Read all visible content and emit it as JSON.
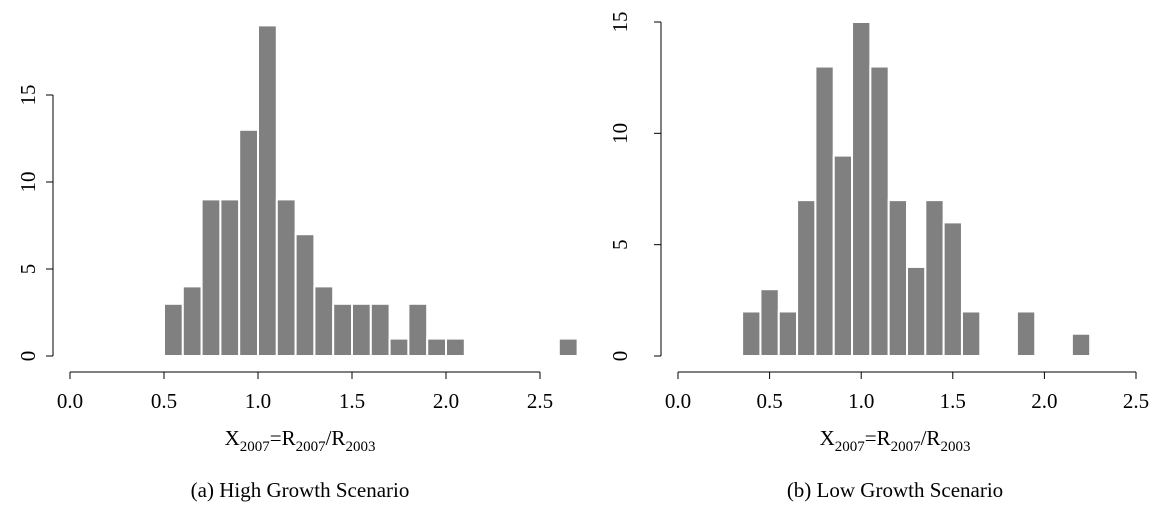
{
  "chart_data": [
    {
      "type": "histogram",
      "caption": "(a) High Growth Scenario",
      "x_label": [
        "X",
        "2007",
        "=R",
        "2007",
        "/R",
        "2003"
      ],
      "bins": [
        0.5,
        0.6,
        0.7,
        0.8,
        0.9,
        1.0,
        1.1,
        1.2,
        1.3,
        1.4,
        1.5,
        1.6,
        1.7,
        1.8,
        1.9,
        2.0,
        2.1,
        2.2,
        2.3,
        2.4,
        2.5,
        2.6,
        2.7
      ],
      "values": [
        3,
        4,
        9,
        9,
        13,
        19,
        9,
        7,
        4,
        3,
        3,
        3,
        1,
        3,
        1,
        1,
        0,
        0,
        0,
        0,
        0,
        1
      ],
      "color": "#808080",
      "xlim": [
        0,
        2.7
      ],
      "xticks": [
        {
          "value": 0,
          "label": "0.0"
        },
        0.5,
        {
          "value": 1,
          "label": "1.0"
        },
        1.5,
        {
          "value": 2,
          "label": "2.0"
        },
        2.5
      ],
      "ylim": [
        0,
        19
      ],
      "yticks": [
        0,
        5,
        10,
        15
      ]
    },
    {
      "type": "histogram",
      "caption": "(b) Low Growth Scenario",
      "x_label": [
        "X",
        "2007",
        "=R",
        "2007",
        "/R",
        "2003"
      ],
      "bins": [
        0.35,
        0.45,
        0.55,
        0.65,
        0.75,
        0.85,
        0.95,
        1.05,
        1.15,
        1.25,
        1.35,
        1.45,
        1.55,
        1.65,
        1.75,
        1.85,
        1.95,
        2.05,
        2.15,
        2.25
      ],
      "values": [
        2,
        3,
        2,
        7,
        13,
        9,
        15,
        13,
        7,
        4,
        7,
        6,
        2,
        0,
        0,
        2,
        0,
        0,
        1
      ],
      "color": "#808080",
      "xlim": [
        0,
        2.5
      ],
      "xticks": [
        {
          "value": 0,
          "label": "0.0"
        },
        0.5,
        {
          "value": 1,
          "label": "1.0"
        },
        1.5,
        {
          "value": 2,
          "label": "2.0"
        },
        2.5
      ],
      "ylim": [
        0,
        15
      ],
      "yticks": [
        0,
        5,
        10,
        15
      ]
    }
  ]
}
